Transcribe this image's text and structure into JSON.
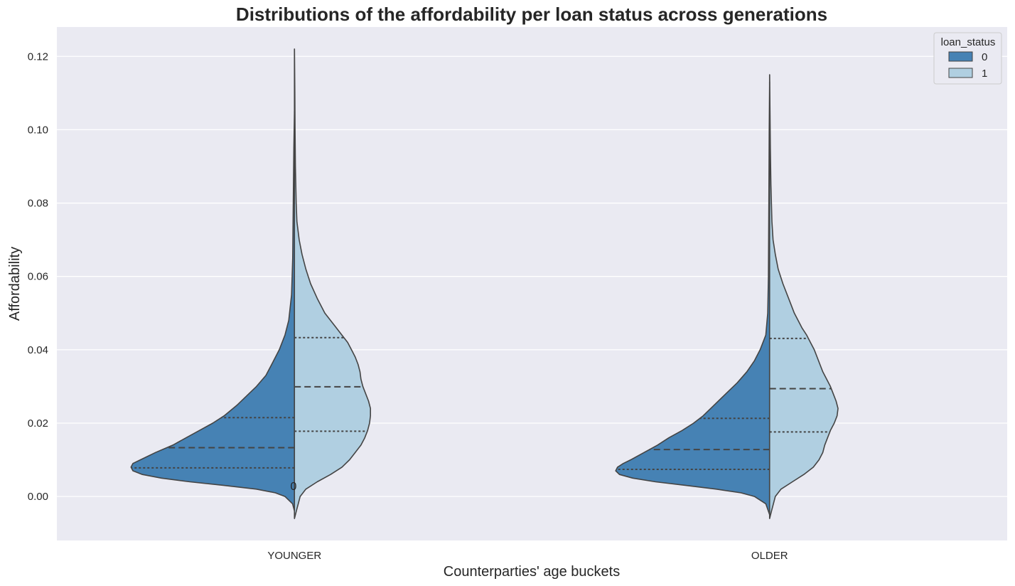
{
  "title": "Distributions of the affordability per loan status across generations",
  "chart_data": {
    "type": "violin",
    "title": "Distributions of the affordability per loan status across generations",
    "xlabel": "Counterparties' age buckets",
    "ylabel": "Affordability",
    "categories": [
      "YOUNGER",
      "OLDER"
    ],
    "ylim": [
      -0.012,
      0.128
    ],
    "yticks": [
      "0.00",
      "0.02",
      "0.04",
      "0.06",
      "0.08",
      "0.10",
      "0.12"
    ],
    "grid": true,
    "legend": {
      "title": "loan_status",
      "position": "top-right",
      "entries": [
        "0",
        "1"
      ]
    },
    "annotation": "0",
    "series": [
      {
        "name": "0",
        "color": "#4682b4",
        "side": "left",
        "violins": [
          {
            "category": "YOUNGER",
            "max": 0.105,
            "min": -0.004,
            "quartiles": {
              "q1": 0.0078,
              "median": 0.0133,
              "q3": 0.0215
            },
            "profile": [
              [
                -0.004,
                0.0
              ],
              [
                -0.002,
                0.01
              ],
              [
                0.0,
                0.05
              ],
              [
                0.001,
                0.1
              ],
              [
                0.002,
                0.2
              ],
              [
                0.003,
                0.37
              ],
              [
                0.004,
                0.55
              ],
              [
                0.005,
                0.7
              ],
              [
                0.006,
                0.8
              ],
              [
                0.007,
                0.85
              ],
              [
                0.008,
                0.86
              ],
              [
                0.009,
                0.85
              ],
              [
                0.01,
                0.81
              ],
              [
                0.012,
                0.73
              ],
              [
                0.014,
                0.64
              ],
              [
                0.016,
                0.57
              ],
              [
                0.018,
                0.5
              ],
              [
                0.02,
                0.43
              ],
              [
                0.022,
                0.37
              ],
              [
                0.025,
                0.3
              ],
              [
                0.028,
                0.24
              ],
              [
                0.03,
                0.2
              ],
              [
                0.033,
                0.15
              ],
              [
                0.036,
                0.12
              ],
              [
                0.04,
                0.08
              ],
              [
                0.044,
                0.05
              ],
              [
                0.048,
                0.03
              ],
              [
                0.055,
                0.015
              ],
              [
                0.065,
                0.009
              ],
              [
                0.08,
                0.006
              ],
              [
                0.095,
                0.003
              ],
              [
                0.105,
                0.0
              ]
            ]
          },
          {
            "category": "OLDER",
            "max": 0.113,
            "min": -0.005,
            "quartiles": {
              "q1": 0.0074,
              "median": 0.0128,
              "q3": 0.0213
            },
            "profile": [
              [
                -0.005,
                0.0
              ],
              [
                -0.002,
                0.02
              ],
              [
                0.0,
                0.08
              ],
              [
                0.001,
                0.15
              ],
              [
                0.002,
                0.28
              ],
              [
                0.003,
                0.44
              ],
              [
                0.004,
                0.6
              ],
              [
                0.005,
                0.72
              ],
              [
                0.006,
                0.79
              ],
              [
                0.007,
                0.81
              ],
              [
                0.008,
                0.8
              ],
              [
                0.009,
                0.77
              ],
              [
                0.01,
                0.73
              ],
              [
                0.012,
                0.66
              ],
              [
                0.014,
                0.59
              ],
              [
                0.016,
                0.53
              ],
              [
                0.018,
                0.46
              ],
              [
                0.02,
                0.4
              ],
              [
                0.022,
                0.35
              ],
              [
                0.025,
                0.29
              ],
              [
                0.028,
                0.23
              ],
              [
                0.031,
                0.17
              ],
              [
                0.034,
                0.12
              ],
              [
                0.037,
                0.08
              ],
              [
                0.04,
                0.05
              ],
              [
                0.044,
                0.02
              ],
              [
                0.05,
                0.01
              ],
              [
                0.06,
                0.006
              ],
              [
                0.08,
                0.004
              ],
              [
                0.1,
                0.002
              ],
              [
                0.113,
                0.0
              ]
            ]
          }
        ]
      },
      {
        "name": "1",
        "color": "#b0cfe1",
        "side": "right",
        "violins": [
          {
            "category": "YOUNGER",
            "max": 0.122,
            "min": -0.006,
            "quartiles": {
              "q1": 0.0178,
              "median": 0.0299,
              "q3": 0.0433
            },
            "profile": [
              [
                -0.006,
                0.0
              ],
              [
                -0.004,
                0.01
              ],
              [
                -0.002,
                0.02
              ],
              [
                0.0,
                0.03
              ],
              [
                0.002,
                0.06
              ],
              [
                0.004,
                0.12
              ],
              [
                0.006,
                0.19
              ],
              [
                0.008,
                0.25
              ],
              [
                0.01,
                0.29
              ],
              [
                0.012,
                0.32
              ],
              [
                0.014,
                0.35
              ],
              [
                0.016,
                0.37
              ],
              [
                0.018,
                0.385
              ],
              [
                0.02,
                0.395
              ],
              [
                0.022,
                0.4
              ],
              [
                0.024,
                0.4
              ],
              [
                0.026,
                0.39
              ],
              [
                0.028,
                0.375
              ],
              [
                0.03,
                0.36
              ],
              [
                0.032,
                0.35
              ],
              [
                0.034,
                0.345
              ],
              [
                0.036,
                0.335
              ],
              [
                0.038,
                0.32
              ],
              [
                0.04,
                0.3
              ],
              [
                0.042,
                0.28
              ],
              [
                0.044,
                0.25
              ],
              [
                0.046,
                0.22
              ],
              [
                0.048,
                0.19
              ],
              [
                0.05,
                0.16
              ],
              [
                0.054,
                0.12
              ],
              [
                0.058,
                0.085
              ],
              [
                0.062,
                0.06
              ],
              [
                0.066,
                0.04
              ],
              [
                0.07,
                0.025
              ],
              [
                0.075,
                0.013
              ],
              [
                0.08,
                0.009
              ],
              [
                0.09,
                0.005
              ],
              [
                0.1,
                0.003
              ],
              [
                0.11,
                0.002
              ],
              [
                0.122,
                0.0
              ]
            ]
          },
          {
            "category": "OLDER",
            "max": 0.115,
            "min": -0.006,
            "quartiles": {
              "q1": 0.0176,
              "median": 0.0294,
              "q3": 0.0431
            },
            "profile": [
              [
                -0.006,
                0.0
              ],
              [
                -0.004,
                0.01
              ],
              [
                -0.002,
                0.02
              ],
              [
                0.0,
                0.03
              ],
              [
                0.002,
                0.06
              ],
              [
                0.004,
                0.12
              ],
              [
                0.006,
                0.18
              ],
              [
                0.008,
                0.23
              ],
              [
                0.01,
                0.26
              ],
              [
                0.012,
                0.28
              ],
              [
                0.014,
                0.29
              ],
              [
                0.016,
                0.305
              ],
              [
                0.018,
                0.32
              ],
              [
                0.02,
                0.34
              ],
              [
                0.022,
                0.355
              ],
              [
                0.024,
                0.36
              ],
              [
                0.026,
                0.35
              ],
              [
                0.028,
                0.335
              ],
              [
                0.03,
                0.32
              ],
              [
                0.032,
                0.3
              ],
              [
                0.034,
                0.28
              ],
              [
                0.036,
                0.265
              ],
              [
                0.038,
                0.25
              ],
              [
                0.04,
                0.235
              ],
              [
                0.042,
                0.215
              ],
              [
                0.044,
                0.195
              ],
              [
                0.046,
                0.17
              ],
              [
                0.048,
                0.15
              ],
              [
                0.05,
                0.13
              ],
              [
                0.054,
                0.1
              ],
              [
                0.058,
                0.07
              ],
              [
                0.062,
                0.045
              ],
              [
                0.066,
                0.03
              ],
              [
                0.07,
                0.018
              ],
              [
                0.075,
                0.012
              ],
              [
                0.085,
                0.007
              ],
              [
                0.095,
                0.004
              ],
              [
                0.105,
                0.002
              ],
              [
                0.115,
                0.0
              ]
            ]
          }
        ]
      }
    ]
  }
}
